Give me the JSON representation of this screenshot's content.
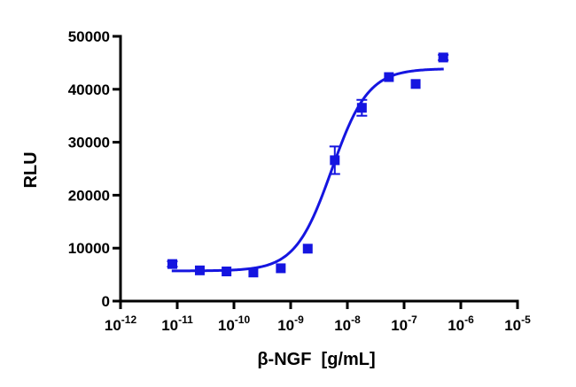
{
  "chart_data": {
    "type": "scatter",
    "title": "",
    "xlabel": "β-NGF  [g/mL]",
    "ylabel": "RLU",
    "x_scale": "log",
    "xlim": [
      1e-12,
      1e-05
    ],
    "ylim": [
      0,
      50000
    ],
    "grid": false,
    "legend": "none",
    "x_ticks": [
      {
        "value": 1e-12,
        "base": "10",
        "exp": "-12"
      },
      {
        "value": 1e-11,
        "base": "10",
        "exp": "-11"
      },
      {
        "value": 1e-10,
        "base": "10",
        "exp": "-10"
      },
      {
        "value": 1e-09,
        "base": "10",
        "exp": "-9"
      },
      {
        "value": 1e-08,
        "base": "10",
        "exp": "-8"
      },
      {
        "value": 1e-07,
        "base": "10",
        "exp": "-7"
      },
      {
        "value": 1e-06,
        "base": "10",
        "exp": "-6"
      },
      {
        "value": 1e-05,
        "base": "10",
        "exp": "-5"
      }
    ],
    "y_ticks": [
      {
        "value": 0,
        "label": "0"
      },
      {
        "value": 10000,
        "label": "10000"
      },
      {
        "value": 20000,
        "label": "20000"
      },
      {
        "value": 30000,
        "label": "30000"
      },
      {
        "value": 40000,
        "label": "40000"
      },
      {
        "value": 50000,
        "label": "50000"
      }
    ],
    "series": [
      {
        "color": "#1515e0",
        "marker": "square",
        "points": [
          {
            "x": 8.2e-12,
            "y": 7000,
            "err": 500
          },
          {
            "x": 2.5e-11,
            "y": 5800,
            "err": 0
          },
          {
            "x": 7.4e-11,
            "y": 5600,
            "err": 0
          },
          {
            "x": 2.2e-10,
            "y": 5400,
            "err": 0
          },
          {
            "x": 6.7e-10,
            "y": 6200,
            "err": 0
          },
          {
            "x": 2e-09,
            "y": 9900,
            "err": 0
          },
          {
            "x": 6e-09,
            "y": 26600,
            "err": 2600
          },
          {
            "x": 1.8e-08,
            "y": 36500,
            "err": 1500
          },
          {
            "x": 5.4e-08,
            "y": 42300,
            "err": 0
          },
          {
            "x": 1.6e-07,
            "y": 41000,
            "err": 0
          },
          {
            "x": 4.9e-07,
            "y": 46000,
            "err": 500
          }
        ],
        "fit": {
          "model": "four-parameter-logistic",
          "bottom": 5700,
          "top": 43900,
          "ec50": 5.3e-09,
          "hill": 1.35
        }
      }
    ]
  }
}
